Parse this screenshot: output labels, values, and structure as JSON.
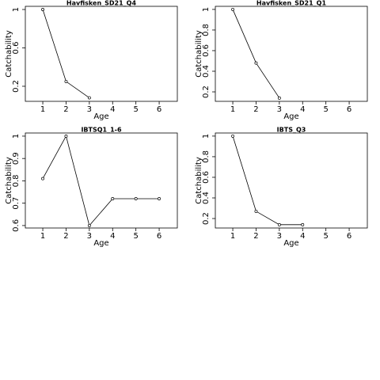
{
  "chart_data": [
    {
      "type": "line",
      "title": "Havfisken_SD21_Q4",
      "xlabel": "Age",
      "ylabel": "Catchability",
      "x": [
        1,
        2,
        3
      ],
      "values": [
        1.0,
        0.25,
        0.08
      ],
      "color": "#000000",
      "xlim": [
        0.25,
        6.78
      ],
      "ylim": [
        0.043,
        1.033
      ],
      "xticks": [
        1,
        2,
        3,
        4,
        5,
        6
      ],
      "yticks": [
        0.2,
        0.6,
        1.0
      ]
    },
    {
      "type": "line",
      "title": "Havfisken_SD21_Q1",
      "xlabel": "Age",
      "ylabel": "Catchability",
      "x": [
        1,
        2,
        3
      ],
      "values": [
        1.0,
        0.48,
        0.14
      ],
      "color": "#000000",
      "xlim": [
        0.25,
        6.78
      ],
      "ylim": [
        0.108,
        1.03
      ],
      "xticks": [
        1,
        2,
        3,
        4,
        5,
        6
      ],
      "yticks": [
        0.2,
        0.4,
        0.6,
        0.8,
        1.0
      ]
    },
    {
      "type": "line",
      "title": "IBTSQ1_1-6",
      "xlabel": "Age",
      "ylabel": "Catchability",
      "x": [
        1,
        2,
        3,
        4,
        5,
        6
      ],
      "values": [
        0.81,
        1.0,
        0.6,
        0.72,
        0.72,
        0.72
      ],
      "color": "#000000",
      "xlim": [
        0.25,
        6.78
      ],
      "ylim": [
        0.589,
        1.014
      ],
      "xticks": [
        1,
        2,
        3,
        4,
        5,
        6
      ],
      "yticks": [
        0.6,
        0.7,
        0.8,
        0.9,
        1.0
      ]
    },
    {
      "type": "line",
      "title": "IBTS_Q3",
      "xlabel": "Age",
      "ylabel": "Catchability",
      "x": [
        1,
        2,
        3,
        4
      ],
      "values": [
        1.0,
        0.27,
        0.14,
        0.14
      ],
      "color": "#000000",
      "xlim": [
        0.25,
        6.78
      ],
      "ylim": [
        0.108,
        1.03
      ],
      "xticks": [
        1,
        2,
        3,
        4,
        5,
        6
      ],
      "yticks": [
        0.2,
        0.4,
        0.6,
        0.8,
        1.0
      ]
    }
  ]
}
